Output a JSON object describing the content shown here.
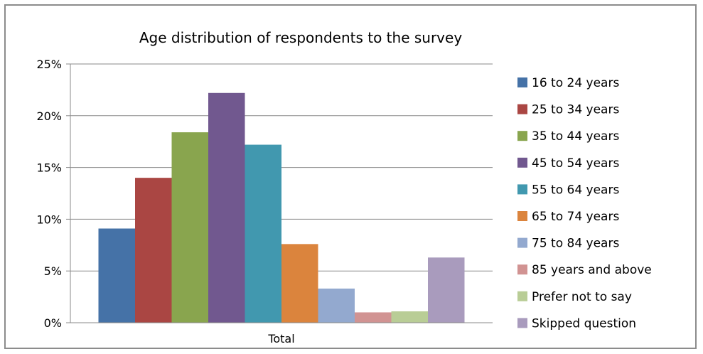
{
  "chart_data": {
    "type": "bar",
    "title": "Age distribution of respondents to the survey",
    "categories": [
      "Total"
    ],
    "xlabel": "",
    "ylabel": "",
    "ylim": [
      0,
      25
    ],
    "yticks": [
      "0%",
      "5%",
      "10%",
      "15%",
      "20%",
      "25%"
    ],
    "grid": true,
    "legend_position": "right",
    "series": [
      {
        "name": "16 to 24 years",
        "values": [
          9.1
        ],
        "color": "#4572a7"
      },
      {
        "name": "25 to 34 years",
        "values": [
          14.0
        ],
        "color": "#aa4643"
      },
      {
        "name": "35 to 44 years",
        "values": [
          18.4
        ],
        "color": "#89a54e"
      },
      {
        "name": "45 to 54 years",
        "values": [
          22.2
        ],
        "color": "#71588f"
      },
      {
        "name": "55 to 64 years",
        "values": [
          17.2
        ],
        "color": "#4198af"
      },
      {
        "name": "65 to 74 years",
        "values": [
          7.6
        ],
        "color": "#db843d"
      },
      {
        "name": "75 to 84 years",
        "values": [
          3.3
        ],
        "color": "#93a9cf"
      },
      {
        "name": "85 years and above",
        "values": [
          1.0
        ],
        "color": "#d19392"
      },
      {
        "name": "Prefer not to say",
        "values": [
          1.1
        ],
        "color": "#b9cd96"
      },
      {
        "name": "Skipped question",
        "values": [
          6.3
        ],
        "color": "#a99bbd"
      }
    ]
  }
}
